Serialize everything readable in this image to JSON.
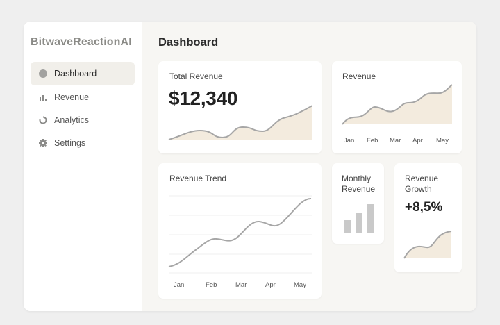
{
  "brand": "BitwaveReactionAI",
  "page_title": "Dashboard",
  "colors": {
    "line": "#a6a6a6",
    "fill": "#f3ebde",
    "bar": "#c9c9c9",
    "active_nav": "#f1efea"
  },
  "sidebar": {
    "items": [
      {
        "label": "Dashboard",
        "icon": "circle-icon",
        "active": true
      },
      {
        "label": "Revenue",
        "icon": "bar-chart-icon",
        "active": false
      },
      {
        "label": "Analytics",
        "icon": "loading-ring-icon",
        "active": false
      },
      {
        "label": "Settings",
        "icon": "gear-icon",
        "active": false
      }
    ]
  },
  "cards": {
    "total_revenue": {
      "title": "Total Revenue",
      "value": "$12,340"
    },
    "revenue": {
      "title": "Revenue",
      "months": [
        "Jan",
        "Feb",
        "Mar",
        "Apr",
        "May"
      ]
    },
    "revenue_trend": {
      "title": "Revenue Trend",
      "months": [
        "Jan",
        "Feb",
        "Mar",
        "Apr",
        "May"
      ]
    },
    "monthly_revenue": {
      "title_line1": "Monthly",
      "title_line2": "Revenue"
    },
    "revenue_growth": {
      "title_line1": "Revenue",
      "title_line2": "Growth",
      "value": "+8,5%"
    }
  }
}
